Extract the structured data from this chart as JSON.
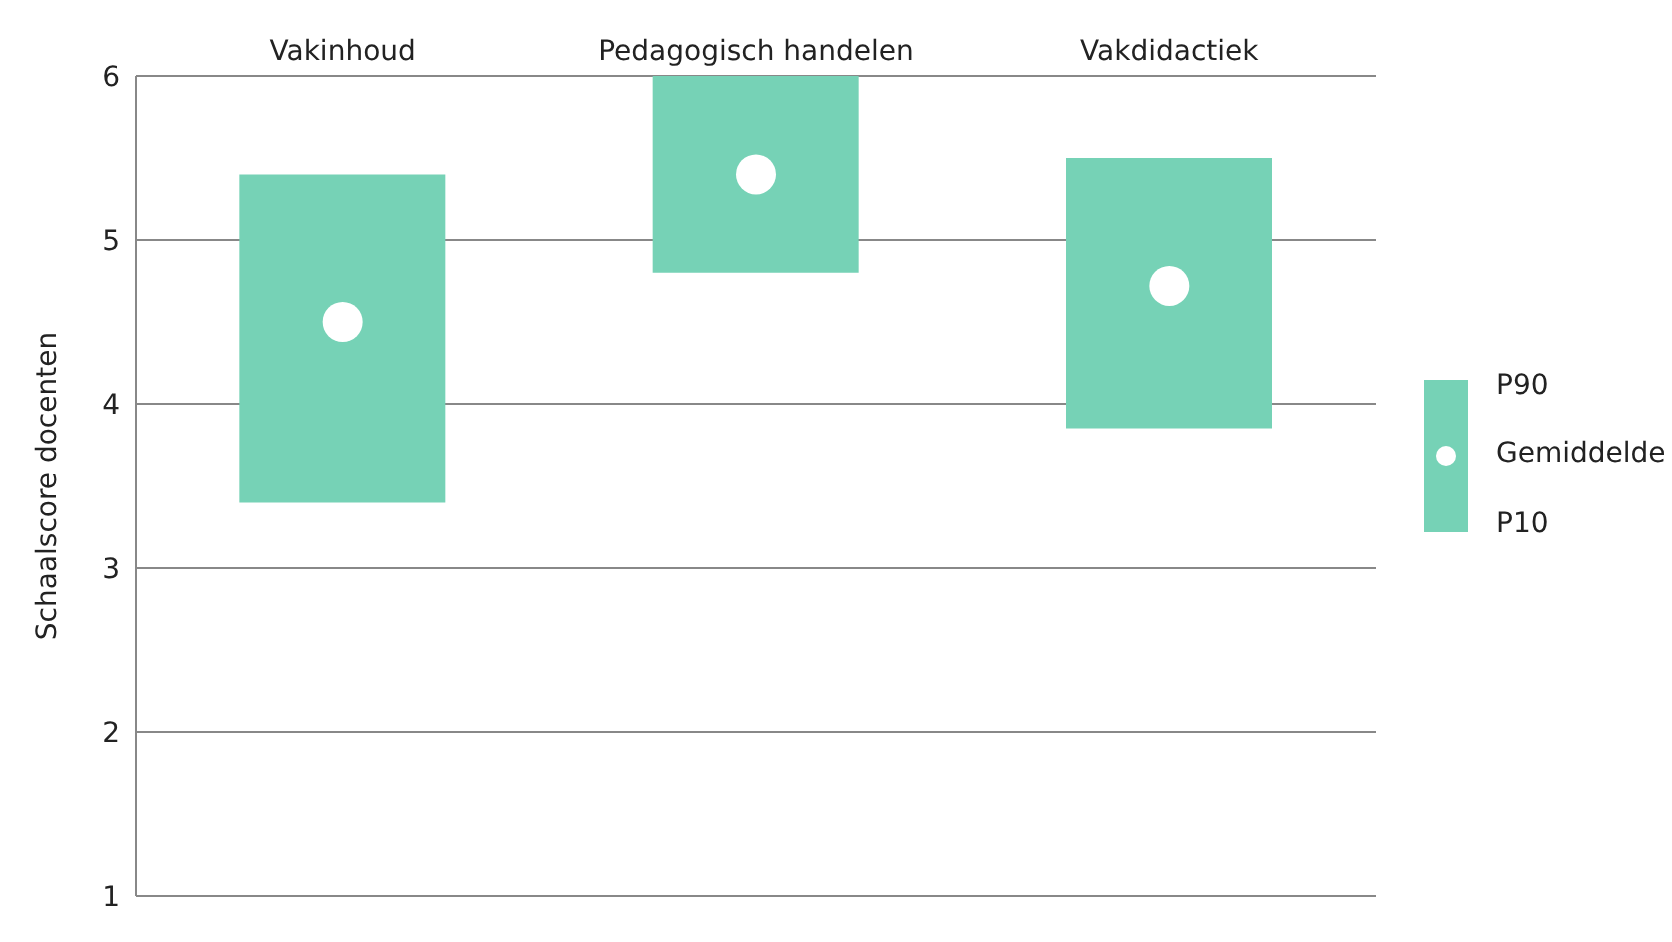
{
  "chart_data": {
    "type": "bar",
    "ylabel": "Schaalscore docenten",
    "categories": [
      "Vakinhoud",
      "Pedagogisch handelen",
      "Vakdidactiek"
    ],
    "series": [
      {
        "color": "#76d2b6",
        "base": [
          3.4,
          4.8,
          3.85
        ],
        "values": [
          2.0,
          1.2,
          1.65
        ]
      },
      {
        "type": "scatter",
        "name": "Gemiddelde",
        "color": "#ffffff",
        "values": [
          4.5,
          5.4,
          4.72
        ]
      }
    ],
    "ylim": [
      1,
      6
    ],
    "yticks": [
      1,
      2,
      3,
      4,
      5,
      6
    ],
    "grid": "y",
    "legend": "right",
    "marker": "circle",
    "annotations": [
      "P90",
      "P10"
    ]
  }
}
